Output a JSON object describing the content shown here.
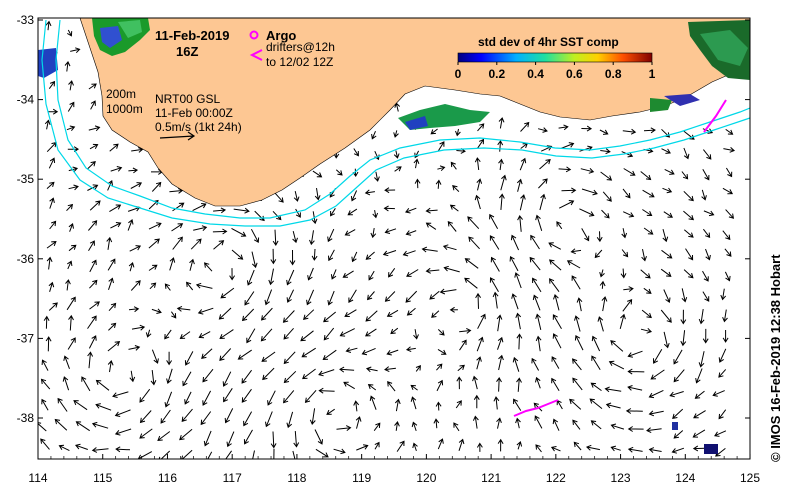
{
  "map": {
    "date_title": "11-Feb-2019",
    "hour_title": "16Z",
    "legend": {
      "argo_label": "Argo",
      "drifters_line1": "drifters@12h",
      "drifters_line2": "to 12/02 12Z"
    },
    "info": {
      "depth_200": "200m",
      "depth_1000": "1000m",
      "product": "NRT00 GSL",
      "product_time": "11-Feb 00:00Z",
      "scale_text": "0.5m/s (1kt 24h)"
    },
    "colorbar": {
      "title": "std dev of 4hr SST comp",
      "ticks": [
        "0",
        "0.2",
        "0.4",
        "0.6",
        "0.8",
        "1"
      ]
    },
    "credit": "© IMOS 16-Feb-2019 12:38 Hobart",
    "lon_labels": [
      "114",
      "115",
      "116",
      "117",
      "118",
      "119",
      "120",
      "121",
      "122",
      "123",
      "124",
      "125"
    ],
    "lat_labels": [
      "-33",
      "-34",
      "-35",
      "-36",
      "-37",
      "-38"
    ],
    "colors": {
      "land": "#fdc793",
      "isobath": "#00d8e8",
      "drifter": "#ff00ff",
      "arrow": "#000000"
    }
  }
}
